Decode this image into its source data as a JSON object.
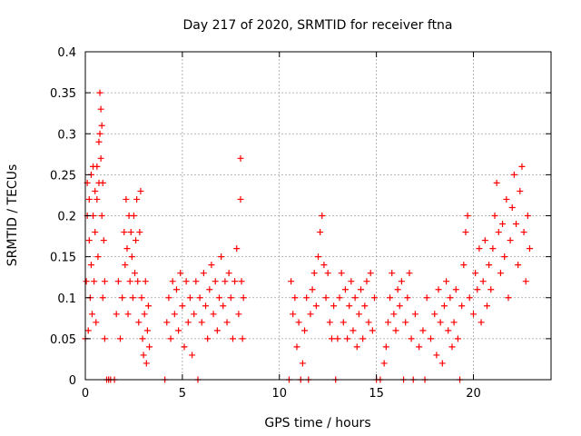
{
  "chart_data": {
    "type": "scatter",
    "title": "Day 217 of 2020, SRMTID for receiver ftna",
    "xlabel": "GPS time / hours",
    "ylabel": "SRMTID / TECUs",
    "xlim": [
      0,
      24
    ],
    "ylim": [
      0,
      0.4
    ],
    "xticks": [
      0,
      5,
      10,
      15,
      20
    ],
    "xtick_labels": [
      "0",
      "5",
      "10",
      "15",
      "20"
    ],
    "yticks": [
      0,
      0.05,
      0.1,
      0.15,
      0.2,
      0.25,
      0.3,
      0.35,
      0.4
    ],
    "ytick_labels": [
      "0",
      "0.05",
      "0.1",
      "0.15",
      "0.2",
      "0.25",
      "0.3",
      "0.35",
      "0.4"
    ],
    "grid": true,
    "marker": "+",
    "color": "#ff0000",
    "series": [
      {
        "name": "SRMTID",
        "points": [
          [
            0.0,
            0.05
          ],
          [
            0.05,
            0.12
          ],
          [
            0.1,
            0.2
          ],
          [
            0.1,
            0.24
          ],
          [
            0.15,
            0.06
          ],
          [
            0.2,
            0.17
          ],
          [
            0.2,
            0.22
          ],
          [
            0.25,
            0.1
          ],
          [
            0.3,
            0.25
          ],
          [
            0.3,
            0.14
          ],
          [
            0.35,
            0.08
          ],
          [
            0.4,
            0.2
          ],
          [
            0.4,
            0.26
          ],
          [
            0.45,
            0.12
          ],
          [
            0.5,
            0.23
          ],
          [
            0.5,
            0.18
          ],
          [
            0.55,
            0.07
          ],
          [
            0.6,
            0.22
          ],
          [
            0.6,
            0.26
          ],
          [
            0.65,
            0.15
          ],
          [
            0.7,
            0.29
          ],
          [
            0.7,
            0.24
          ],
          [
            0.75,
            0.35
          ],
          [
            0.75,
            0.3
          ],
          [
            0.8,
            0.33
          ],
          [
            0.8,
            0.27
          ],
          [
            0.85,
            0.31
          ],
          [
            0.85,
            0.2
          ],
          [
            0.9,
            0.24
          ],
          [
            0.9,
            0.1
          ],
          [
            0.95,
            0.17
          ],
          [
            1.0,
            0.12
          ],
          [
            1.0,
            0.05
          ],
          [
            1.1,
            0.0
          ],
          [
            1.2,
            0.0
          ],
          [
            1.3,
            0.0
          ],
          [
            1.5,
            0.0
          ],
          [
            1.6,
            0.08
          ],
          [
            1.7,
            0.12
          ],
          [
            1.8,
            0.05
          ],
          [
            1.9,
            0.1
          ],
          [
            2.0,
            0.18
          ],
          [
            2.05,
            0.14
          ],
          [
            2.1,
            0.22
          ],
          [
            2.15,
            0.16
          ],
          [
            2.2,
            0.08
          ],
          [
            2.25,
            0.2
          ],
          [
            2.3,
            0.12
          ],
          [
            2.35,
            0.18
          ],
          [
            2.4,
            0.15
          ],
          [
            2.45,
            0.1
          ],
          [
            2.5,
            0.2
          ],
          [
            2.55,
            0.13
          ],
          [
            2.6,
            0.17
          ],
          [
            2.65,
            0.22
          ],
          [
            2.7,
            0.12
          ],
          [
            2.75,
            0.07
          ],
          [
            2.8,
            0.18
          ],
          [
            2.85,
            0.23
          ],
          [
            2.9,
            0.1
          ],
          [
            2.95,
            0.05
          ],
          [
            3.0,
            0.03
          ],
          [
            3.05,
            0.08
          ],
          [
            3.1,
            0.12
          ],
          [
            3.15,
            0.02
          ],
          [
            3.2,
            0.06
          ],
          [
            3.25,
            0.09
          ],
          [
            3.3,
            0.04
          ],
          [
            4.1,
            0.0
          ],
          [
            4.2,
            0.07
          ],
          [
            4.3,
            0.1
          ],
          [
            4.4,
            0.05
          ],
          [
            4.5,
            0.12
          ],
          [
            4.6,
            0.08
          ],
          [
            4.7,
            0.11
          ],
          [
            4.8,
            0.06
          ],
          [
            4.9,
            0.13
          ],
          [
            5.0,
            0.09
          ],
          [
            5.1,
            0.04
          ],
          [
            5.2,
            0.12
          ],
          [
            5.3,
            0.07
          ],
          [
            5.4,
            0.1
          ],
          [
            5.5,
            0.03
          ],
          [
            5.6,
            0.08
          ],
          [
            5.7,
            0.12
          ],
          [
            5.8,
            0.0
          ],
          [
            5.9,
            0.1
          ],
          [
            6.0,
            0.07
          ],
          [
            6.1,
            0.13
          ],
          [
            6.2,
            0.09
          ],
          [
            6.3,
            0.05
          ],
          [
            6.4,
            0.11
          ],
          [
            6.5,
            0.14
          ],
          [
            6.6,
            0.08
          ],
          [
            6.7,
            0.12
          ],
          [
            6.8,
            0.06
          ],
          [
            6.9,
            0.1
          ],
          [
            7.0,
            0.15
          ],
          [
            7.1,
            0.09
          ],
          [
            7.2,
            0.12
          ],
          [
            7.3,
            0.07
          ],
          [
            7.4,
            0.13
          ],
          [
            7.5,
            0.1
          ],
          [
            7.6,
            0.05
          ],
          [
            7.7,
            0.12
          ],
          [
            7.8,
            0.16
          ],
          [
            7.9,
            0.08
          ],
          [
            8.0,
            0.22
          ],
          [
            8.0,
            0.27
          ],
          [
            8.05,
            0.12
          ],
          [
            8.1,
            0.05
          ],
          [
            8.15,
            0.1
          ],
          [
            10.5,
            0.0
          ],
          [
            10.6,
            0.12
          ],
          [
            10.7,
            0.08
          ],
          [
            10.8,
            0.1
          ],
          [
            10.9,
            0.04
          ],
          [
            11.0,
            0.07
          ],
          [
            11.1,
            0.0
          ],
          [
            11.2,
            0.02
          ],
          [
            11.3,
            0.06
          ],
          [
            11.4,
            0.1
          ],
          [
            11.5,
            0.0
          ],
          [
            11.6,
            0.08
          ],
          [
            11.7,
            0.11
          ],
          [
            11.8,
            0.13
          ],
          [
            11.9,
            0.09
          ],
          [
            12.0,
            0.15
          ],
          [
            12.1,
            0.18
          ],
          [
            12.2,
            0.2
          ],
          [
            12.3,
            0.14
          ],
          [
            12.4,
            0.1
          ],
          [
            12.5,
            0.13
          ],
          [
            12.6,
            0.07
          ],
          [
            12.7,
            0.05
          ],
          [
            12.8,
            0.09
          ],
          [
            12.9,
            0.0
          ],
          [
            13.0,
            0.05
          ],
          [
            13.1,
            0.1
          ],
          [
            13.2,
            0.13
          ],
          [
            13.3,
            0.07
          ],
          [
            13.4,
            0.11
          ],
          [
            13.5,
            0.05
          ],
          [
            13.6,
            0.09
          ],
          [
            13.7,
            0.12
          ],
          [
            13.8,
            0.06
          ],
          [
            13.9,
            0.1
          ],
          [
            14.0,
            0.04
          ],
          [
            14.1,
            0.08
          ],
          [
            14.2,
            0.11
          ],
          [
            14.3,
            0.05
          ],
          [
            14.4,
            0.09
          ],
          [
            14.5,
            0.12
          ],
          [
            14.6,
            0.07
          ],
          [
            14.7,
            0.13
          ],
          [
            14.8,
            0.06
          ],
          [
            14.9,
            0.1
          ],
          [
            15.0,
            0.0
          ],
          [
            15.2,
            0.0
          ],
          [
            15.4,
            0.02
          ],
          [
            15.5,
            0.04
          ],
          [
            15.6,
            0.07
          ],
          [
            15.7,
            0.1
          ],
          [
            15.8,
            0.13
          ],
          [
            15.9,
            0.08
          ],
          [
            16.0,
            0.06
          ],
          [
            16.1,
            0.11
          ],
          [
            16.2,
            0.09
          ],
          [
            16.3,
            0.12
          ],
          [
            16.4,
            0.0
          ],
          [
            16.5,
            0.07
          ],
          [
            16.6,
            0.1
          ],
          [
            16.7,
            0.13
          ],
          [
            16.8,
            0.05
          ],
          [
            16.9,
            0.0
          ],
          [
            17.0,
            0.08
          ],
          [
            17.2,
            0.04
          ],
          [
            17.4,
            0.06
          ],
          [
            17.5,
            0.0
          ],
          [
            17.6,
            0.1
          ],
          [
            17.8,
            0.05
          ],
          [
            18.0,
            0.08
          ],
          [
            18.1,
            0.03
          ],
          [
            18.2,
            0.11
          ],
          [
            18.3,
            0.07
          ],
          [
            18.4,
            0.02
          ],
          [
            18.5,
            0.09
          ],
          [
            18.6,
            0.12
          ],
          [
            18.7,
            0.06
          ],
          [
            18.8,
            0.1
          ],
          [
            18.9,
            0.04
          ],
          [
            19.0,
            0.07
          ],
          [
            19.1,
            0.11
          ],
          [
            19.2,
            0.05
          ],
          [
            19.3,
            0.0
          ],
          [
            19.4,
            0.09
          ],
          [
            19.5,
            0.14
          ],
          [
            19.6,
            0.18
          ],
          [
            19.7,
            0.2
          ],
          [
            19.8,
            0.1
          ],
          [
            20.0,
            0.08
          ],
          [
            20.1,
            0.13
          ],
          [
            20.2,
            0.11
          ],
          [
            20.3,
            0.16
          ],
          [
            20.4,
            0.07
          ],
          [
            20.5,
            0.12
          ],
          [
            20.6,
            0.17
          ],
          [
            20.7,
            0.09
          ],
          [
            20.8,
            0.14
          ],
          [
            20.9,
            0.11
          ],
          [
            21.0,
            0.16
          ],
          [
            21.1,
            0.2
          ],
          [
            21.2,
            0.24
          ],
          [
            21.3,
            0.18
          ],
          [
            21.4,
            0.13
          ],
          [
            21.5,
            0.19
          ],
          [
            21.6,
            0.15
          ],
          [
            21.7,
            0.22
          ],
          [
            21.8,
            0.1
          ],
          [
            21.9,
            0.17
          ],
          [
            22.0,
            0.21
          ],
          [
            22.1,
            0.25
          ],
          [
            22.2,
            0.19
          ],
          [
            22.3,
            0.14
          ],
          [
            22.4,
            0.23
          ],
          [
            22.5,
            0.26
          ],
          [
            22.6,
            0.18
          ],
          [
            22.7,
            0.12
          ],
          [
            22.8,
            0.2
          ],
          [
            22.9,
            0.16
          ]
        ]
      }
    ]
  }
}
